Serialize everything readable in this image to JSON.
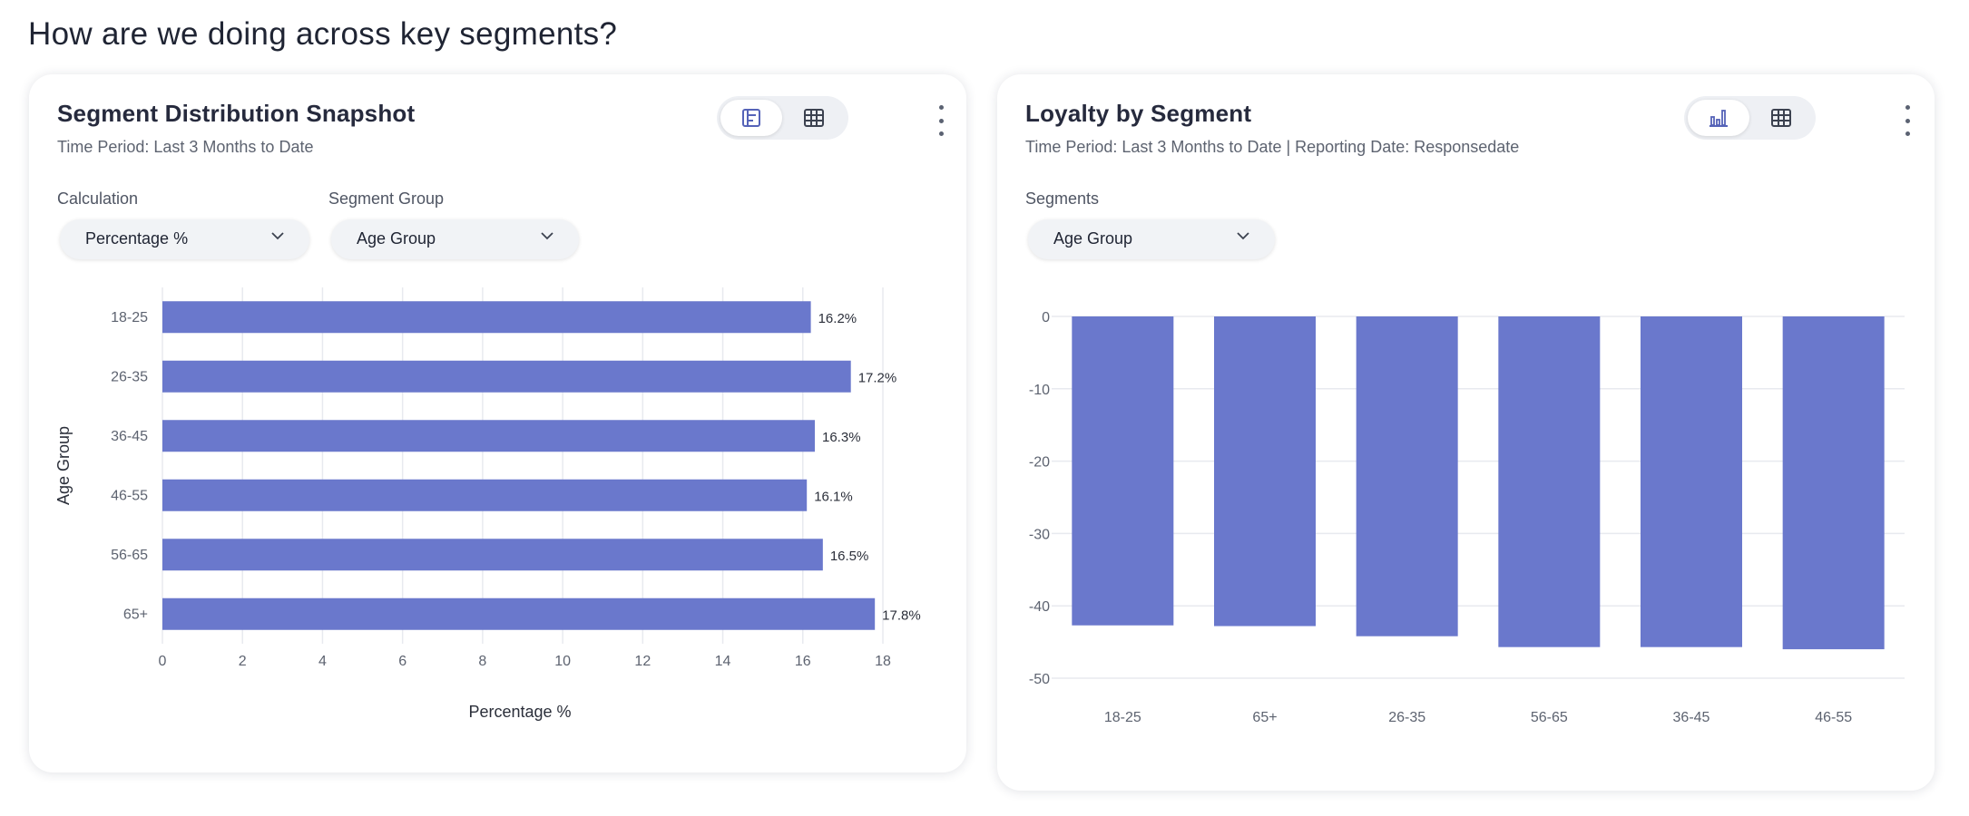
{
  "page": {
    "title": "How are we doing across key segments?"
  },
  "colors": {
    "bar": "#6a78cc",
    "grid": "#e8eaef",
    "axis_text": "#5d6370",
    "accent_icon": "#5563b8"
  },
  "card1": {
    "title": "Segment Distribution Snapshot",
    "subtitle": "Time Period: Last 3 Months to Date",
    "toggle": {
      "left_icon": "horizontal-bar-chart-icon",
      "right_icon": "table-icon",
      "active": "left"
    },
    "calculation": {
      "label": "Calculation",
      "value": "Percentage %"
    },
    "segment_group": {
      "label": "Segment Group",
      "value": "Age Group"
    }
  },
  "card2": {
    "title": "Loyalty by Segment",
    "subtitle": "Time Period: Last 3 Months to Date | Reporting Date: Responsedate",
    "toggle": {
      "left_icon": "bar-chart-icon",
      "right_icon": "table-icon",
      "active": "left"
    },
    "segments": {
      "label": "Segments",
      "value": "Age Group"
    }
  },
  "chart_data": [
    {
      "type": "bar",
      "orientation": "horizontal",
      "categories": [
        "18-25",
        "26-35",
        "36-45",
        "46-55",
        "56-65",
        "65+"
      ],
      "values": [
        16.2,
        17.2,
        16.3,
        16.1,
        16.5,
        17.8
      ],
      "data_labels": [
        "16.2%",
        "17.2%",
        "16.3%",
        "16.1%",
        "16.5%",
        "17.8%"
      ],
      "xlabel": "Percentage %",
      "ylabel": "Age Group",
      "xlim": [
        0,
        18
      ],
      "xticks": [
        0,
        2,
        4,
        6,
        8,
        10,
        12,
        14,
        16,
        18
      ],
      "grid": "vertical"
    },
    {
      "type": "bar",
      "orientation": "vertical",
      "categories": [
        "18-25",
        "65+",
        "26-35",
        "56-65",
        "36-45",
        "46-55"
      ],
      "values": [
        -42.7,
        -42.8,
        -44.2,
        -45.7,
        -45.7,
        -46.0
      ],
      "ylim": [
        -50,
        0
      ],
      "yticks": [
        0,
        -10,
        -20,
        -30,
        -40,
        -50
      ],
      "grid": "horizontal"
    }
  ]
}
